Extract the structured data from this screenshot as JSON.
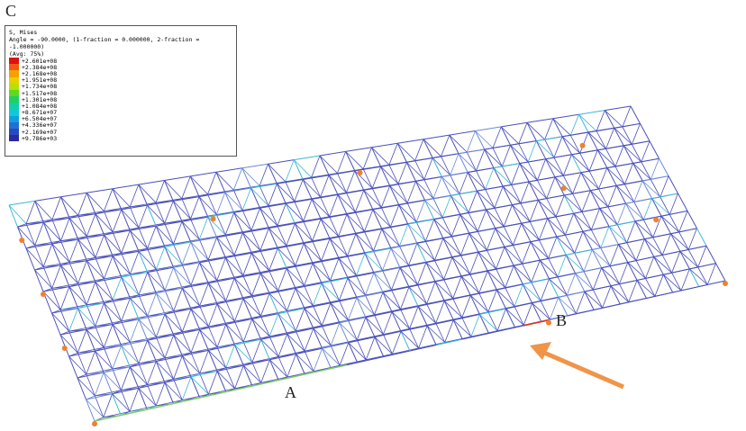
{
  "panel_label": "C",
  "legend": {
    "title": "S, Mises",
    "subtitle": "Angle = -90.0000, (1-fraction = 0.000000, 2-fraction = -1.000000)",
    "averaging": "(Avg: 75%)",
    "entries": [
      {
        "label": "+2.601e+08",
        "color": "#e01010"
      },
      {
        "label": "+2.384e+08",
        "color": "#f05a10"
      },
      {
        "label": "+2.168e+08",
        "color": "#f5a000"
      },
      {
        "label": "+1.951e+08",
        "color": "#e8d000"
      },
      {
        "label": "+1.734e+08",
        "color": "#b8e000"
      },
      {
        "label": "+1.517e+08",
        "color": "#60d820"
      },
      {
        "label": "+1.301e+08",
        "color": "#20d060"
      },
      {
        "label": "+1.084e+08",
        "color": "#10d0a8"
      },
      {
        "label": "+8.671e+07",
        "color": "#10c8d8"
      },
      {
        "label": "+6.504e+07",
        "color": "#10a0e0"
      },
      {
        "label": "+4.336e+07",
        "color": "#2070d8"
      },
      {
        "label": "+2.169e+07",
        "color": "#2a48c0"
      },
      {
        "label": "+9.786e+03",
        "color": "#2a2aa0"
      }
    ]
  },
  "point_labels": [
    "A",
    "B"
  ]
}
